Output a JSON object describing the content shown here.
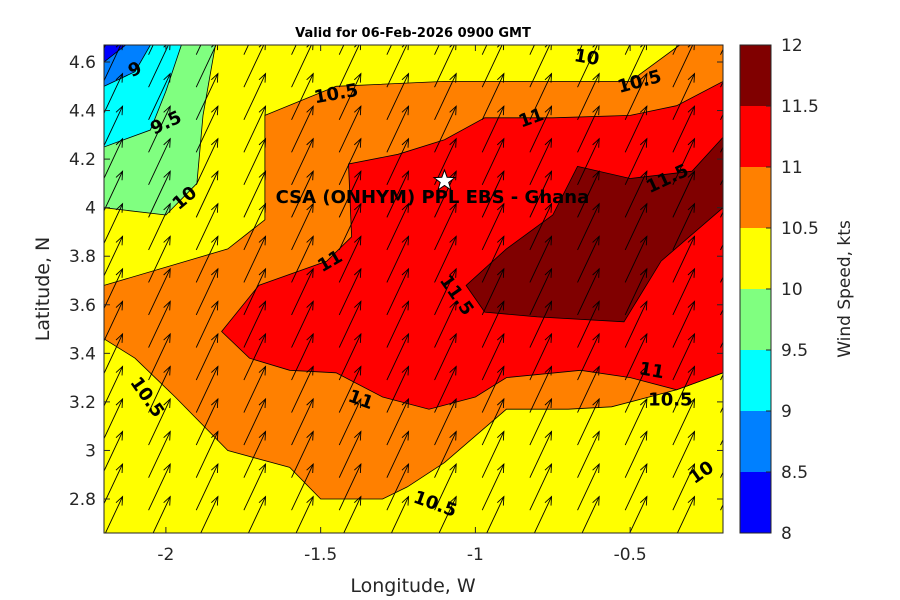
{
  "chart_data": {
    "type": "contour",
    "title": "Valid for 06-Feb-2026 0900 GMT",
    "xlabel": "Longitude, W",
    "ylabel": "Latitude, N",
    "xlim": [
      -2.2,
      -0.2
    ],
    "ylim": [
      2.66,
      4.67
    ],
    "x_ticks": [
      {
        "value": -2,
        "label": "-2"
      },
      {
        "value": -1.5,
        "label": "-1.5"
      },
      {
        "value": -1,
        "label": "-1"
      },
      {
        "value": -0.5,
        "label": "-0.5"
      }
    ],
    "y_ticks": [
      {
        "value": 2.8,
        "label": "2.8"
      },
      {
        "value": 3.0,
        "label": "3"
      },
      {
        "value": 3.2,
        "label": "3.2"
      },
      {
        "value": 3.4,
        "label": "3.4"
      },
      {
        "value": 3.6,
        "label": "3.6"
      },
      {
        "value": 3.8,
        "label": "3.8"
      },
      {
        "value": 4.0,
        "label": "4"
      },
      {
        "value": 4.2,
        "label": "4.2"
      },
      {
        "value": 4.4,
        "label": "4.4"
      },
      {
        "value": 4.6,
        "label": "4.6"
      }
    ],
    "grid": false,
    "colorbar": {
      "label": "Wind Speed, kts",
      "levels": [
        8,
        8.5,
        9,
        9.5,
        10,
        10.5,
        11,
        11.5,
        12
      ],
      "tick_labels": [
        "8",
        "8.5",
        "9",
        "9.5",
        "10",
        "10.5",
        "11",
        "11.5",
        "12"
      ],
      "colors": [
        "#0000ff",
        "#0080ff",
        "#00ffff",
        "#80ff80",
        "#ffff00",
        "#ff8000",
        "#ff0000",
        "#800000"
      ]
    },
    "regions": [
      {
        "level": 10,
        "color": "#80ff80",
        "points": [
          [
            -2.2,
            4.67
          ],
          [
            -1.84,
            4.67
          ],
          [
            -1.88,
            4.38
          ],
          [
            -1.9,
            4.1
          ],
          [
            -2.0,
            3.97
          ],
          [
            -2.2,
            4.0
          ]
        ]
      },
      {
        "level": 9.5,
        "color": "#00ffff",
        "points": [
          [
            -2.2,
            4.67
          ],
          [
            -1.95,
            4.67
          ],
          [
            -2.0,
            4.48
          ],
          [
            -2.05,
            4.32
          ],
          [
            -2.2,
            4.25
          ]
        ]
      },
      {
        "level": 9,
        "color": "#0080ff",
        "points": [
          [
            -2.2,
            4.67
          ],
          [
            -2.05,
            4.67
          ],
          [
            -2.1,
            4.56
          ],
          [
            -2.2,
            4.5
          ]
        ]
      },
      {
        "level": 8.5,
        "color": "#0000ff",
        "points": [
          [
            -2.2,
            4.67
          ],
          [
            -2.13,
            4.67
          ],
          [
            -2.2,
            4.6
          ]
        ]
      },
      {
        "level": 10.5,
        "color": "#ff8000",
        "points": [
          [
            -2.2,
            3.68
          ],
          [
            -1.8,
            3.83
          ],
          [
            -1.68,
            3.95
          ],
          [
            -1.68,
            4.38
          ],
          [
            -1.45,
            4.5
          ],
          [
            -1.1,
            4.52
          ],
          [
            -0.5,
            4.52
          ],
          [
            -0.34,
            4.67
          ],
          [
            -0.2,
            4.67
          ],
          [
            -0.2,
            3.32
          ],
          [
            -0.35,
            3.25
          ],
          [
            -0.56,
            3.18
          ],
          [
            -0.7,
            3.17
          ],
          [
            -0.9,
            3.17
          ],
          [
            -1.1,
            2.95
          ],
          [
            -1.22,
            2.85
          ],
          [
            -1.3,
            2.8
          ],
          [
            -1.5,
            2.8
          ],
          [
            -1.6,
            2.93
          ],
          [
            -1.8,
            3.0
          ],
          [
            -1.97,
            3.22
          ],
          [
            -2.1,
            3.38
          ],
          [
            -2.2,
            3.46
          ]
        ]
      },
      {
        "level": 11,
        "color": "#ff0000",
        "points": [
          [
            -1.82,
            3.49
          ],
          [
            -1.7,
            3.68
          ],
          [
            -1.48,
            3.78
          ],
          [
            -1.4,
            3.88
          ],
          [
            -1.41,
            4.18
          ],
          [
            -1.25,
            4.22
          ],
          [
            -1.1,
            4.28
          ],
          [
            -0.97,
            4.37
          ],
          [
            -0.75,
            4.37
          ],
          [
            -0.5,
            4.38
          ],
          [
            -0.35,
            4.42
          ],
          [
            -0.2,
            4.52
          ],
          [
            -0.2,
            3.32
          ],
          [
            -0.35,
            3.25
          ],
          [
            -0.5,
            3.3
          ],
          [
            -0.66,
            3.33
          ],
          [
            -0.9,
            3.3
          ],
          [
            -1.0,
            3.22
          ],
          [
            -1.15,
            3.17
          ],
          [
            -1.3,
            3.22
          ],
          [
            -1.45,
            3.32
          ],
          [
            -1.6,
            3.33
          ],
          [
            -1.73,
            3.38
          ]
        ]
      },
      {
        "level": 11.5,
        "color": "#800000",
        "points": [
          [
            -0.67,
            4.17
          ],
          [
            -0.5,
            4.12
          ],
          [
            -0.3,
            4.15
          ],
          [
            -0.2,
            4.29
          ],
          [
            -0.2,
            4.0
          ],
          [
            -0.4,
            3.78
          ],
          [
            -0.52,
            3.53
          ],
          [
            -0.8,
            3.55
          ],
          [
            -0.97,
            3.57
          ],
          [
            -1.03,
            3.68
          ],
          [
            -0.9,
            3.83
          ],
          [
            -0.75,
            3.97
          ]
        ]
      }
    ],
    "contour_labels": [
      {
        "text": "9",
        "x": -2.1,
        "y": 4.57,
        "rotate": -25
      },
      {
        "text": "9.5",
        "x": -2.0,
        "y": 4.35,
        "rotate": -25
      },
      {
        "text": "10",
        "x": -1.94,
        "y": 4.04,
        "rotate": -40
      },
      {
        "text": "10.5",
        "x": -1.45,
        "y": 4.47,
        "rotate": -10
      },
      {
        "text": "10",
        "x": -0.64,
        "y": 4.62,
        "rotate": 10
      },
      {
        "text": "10.5",
        "x": -0.47,
        "y": 4.52,
        "rotate": -15
      },
      {
        "text": "11",
        "x": -0.82,
        "y": 4.37,
        "rotate": -20
      },
      {
        "text": "11.5",
        "x": -0.38,
        "y": 4.12,
        "rotate": -25
      },
      {
        "text": "11",
        "x": -1.47,
        "y": 3.78,
        "rotate": -30
      },
      {
        "text": "11.5",
        "x": -1.06,
        "y": 3.64,
        "rotate": 55
      },
      {
        "text": "11",
        "x": -1.37,
        "y": 3.21,
        "rotate": 20
      },
      {
        "text": "11",
        "x": -0.43,
        "y": 3.33,
        "rotate": 10
      },
      {
        "text": "10.5",
        "x": -2.06,
        "y": 3.22,
        "rotate": 55
      },
      {
        "text": "10.5",
        "x": -0.37,
        "y": 3.21,
        "rotate": 0
      },
      {
        "text": "10.5",
        "x": -1.13,
        "y": 2.78,
        "rotate": 20
      },
      {
        "text": "10",
        "x": -0.27,
        "y": 2.91,
        "rotate": -35
      }
    ],
    "site": {
      "label": "CSA (ONHYM) PPL EBS - Ghana",
      "x": -1.1,
      "y": 4.11,
      "marker": "star"
    },
    "vector_field": {
      "direction_note": "arrows point toward the north-north-east (wind from the SSW)",
      "arrow_dx_deg": 0.07,
      "arrow_dy_deg": 0.19
    }
  }
}
